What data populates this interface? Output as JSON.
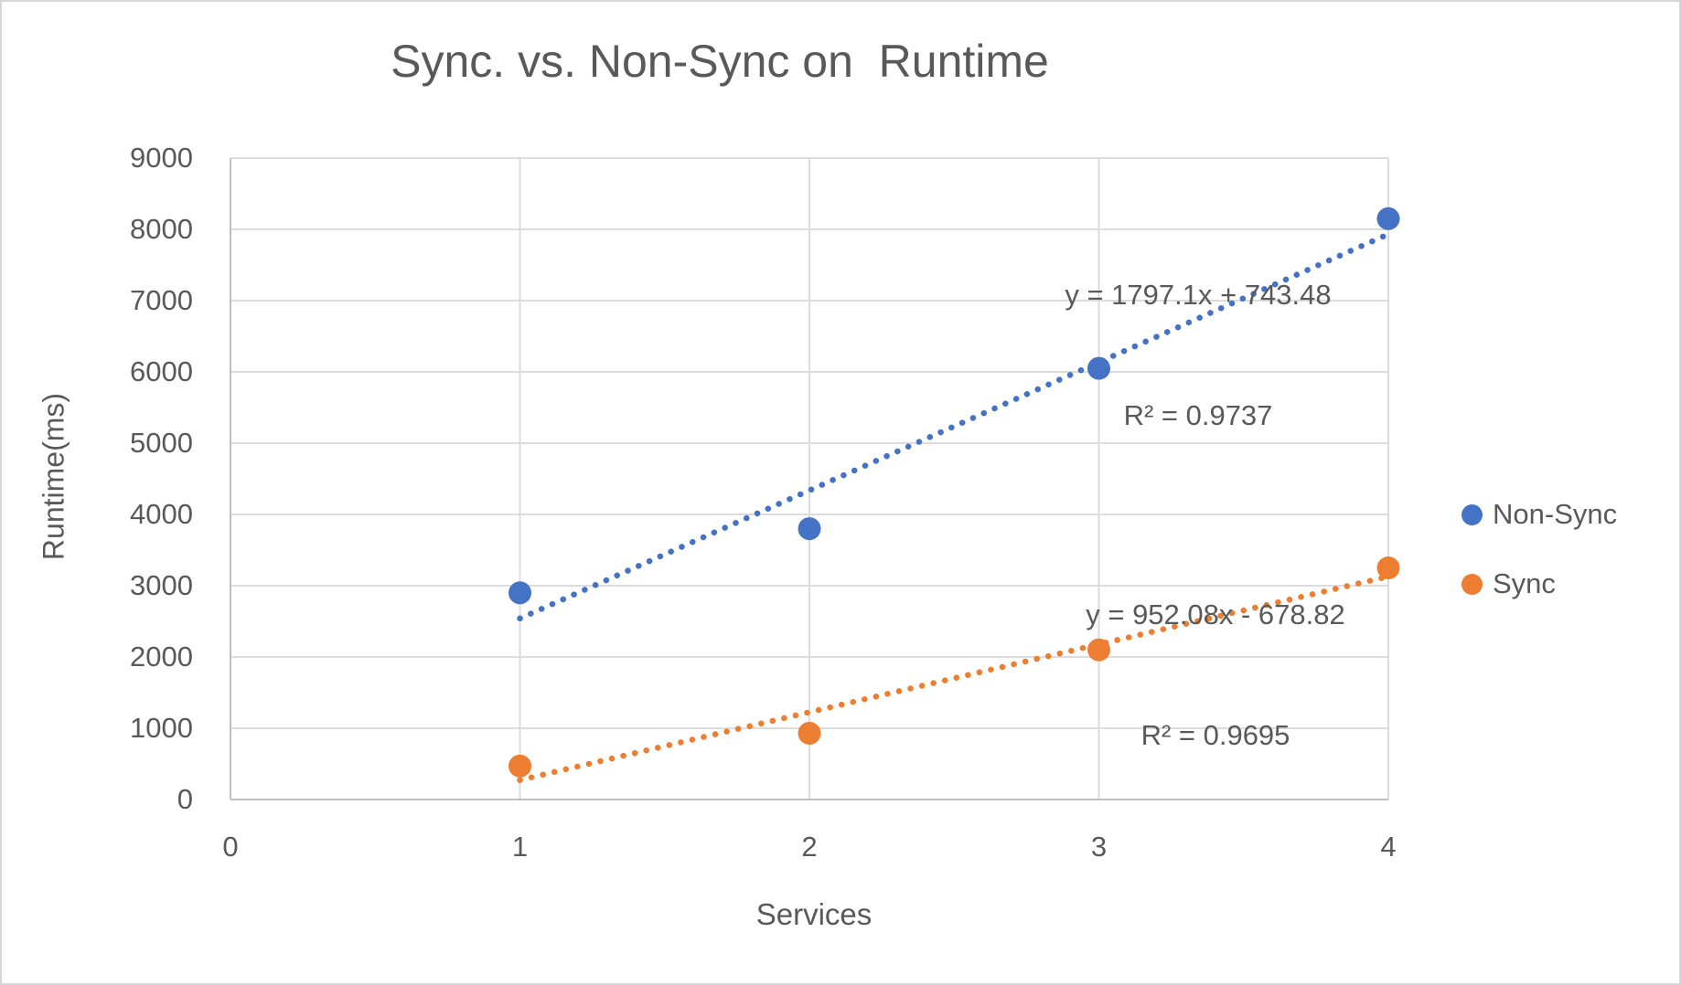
{
  "chart_data": {
    "type": "scatter",
    "title": "Sync. vs. Non-Sync on  Runtime",
    "xlabel": "Services",
    "ylabel": "Runtime(ms)",
    "xlim": [
      0,
      4
    ],
    "ylim": [
      0,
      9000
    ],
    "x_ticks": [
      0,
      1,
      2,
      3,
      4
    ],
    "y_ticks": [
      0,
      1000,
      2000,
      3000,
      4000,
      5000,
      6000,
      7000,
      8000,
      9000
    ],
    "grid": true,
    "legend_position": "right",
    "x": [
      1,
      2,
      3,
      4
    ],
    "series": [
      {
        "name": "Non-Sync",
        "color": "#4472C4",
        "values": [
          2900,
          3800,
          6050,
          8150
        ],
        "trendline": {
          "style": "dotted",
          "slope": 1797.1,
          "intercept": 743.48,
          "label": "y = 1797.1x + 743.48",
          "r2_label": "R² = 0.9737"
        }
      },
      {
        "name": "Sync",
        "color": "#ED7D31",
        "values": [
          470,
          930,
          2100,
          3250
        ],
        "trendline": {
          "style": "dotted",
          "slope": 952.08,
          "intercept": -678.82,
          "label": "y = 952.08x - 678.82",
          "r2_label": "R² = 0.9695"
        }
      }
    ]
  }
}
